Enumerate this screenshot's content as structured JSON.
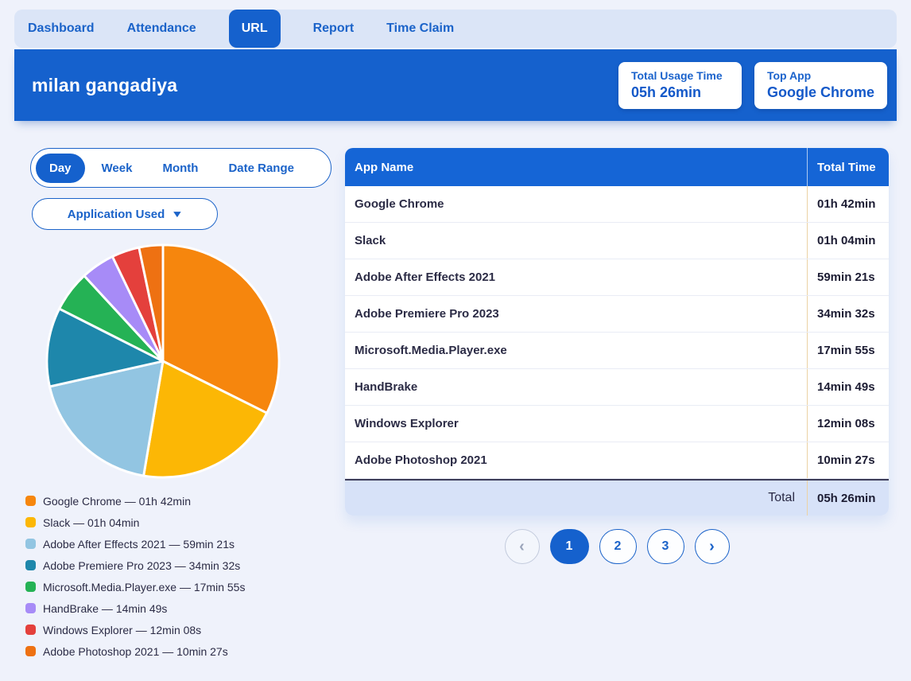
{
  "nav": {
    "tabs": [
      {
        "label": "Dashboard",
        "active": false
      },
      {
        "label": "Attendance",
        "active": false
      },
      {
        "label": "URL",
        "active": true
      },
      {
        "label": "Report",
        "active": false
      },
      {
        "label": "Time Claim",
        "active": false
      }
    ]
  },
  "header": {
    "user_name": "milan gangadiya",
    "stats": [
      {
        "label": "Total Usage Time",
        "value": "05h 26min"
      },
      {
        "label": "Top App",
        "value": "Google Chrome"
      }
    ]
  },
  "filters": {
    "range_options": [
      {
        "label": "Day",
        "active": true
      },
      {
        "label": "Week",
        "active": false
      },
      {
        "label": "Month",
        "active": false
      },
      {
        "label": "Date Range",
        "active": false
      }
    ],
    "application_used_label": "Application Used"
  },
  "icons": {
    "dropdown_caret": "▼",
    "prev_arrow": "‹",
    "next_arrow": "›"
  },
  "chart_data": {
    "type": "pie",
    "start_angle_deg_from_top": 0,
    "direction": "clockwise",
    "legend_position": "bottom-left",
    "separator": "—",
    "slices": [
      {
        "label": "Google Chrome",
        "time": "01h 42min",
        "seconds": 6120,
        "color": "#F6860D"
      },
      {
        "label": "Slack",
        "time": "01h 04min",
        "seconds": 3840,
        "color": "#FCB705"
      },
      {
        "label": "Adobe After Effects 2021",
        "time": "59min 21s",
        "seconds": 3561,
        "color": "#92C5E2"
      },
      {
        "label": "Adobe Premiere Pro 2023",
        "time": "34min 32s",
        "seconds": 2072,
        "color": "#1E87AB"
      },
      {
        "label": "Microsoft.Media.Player.exe",
        "time": "17min 55s",
        "seconds": 1075,
        "color": "#25B255"
      },
      {
        "label": "HandBrake",
        "time": "14min 49s",
        "seconds": 889,
        "color": "#A78BF7"
      },
      {
        "label": "Windows Explorer",
        "time": "12min 08s",
        "seconds": 728,
        "color": "#E4403C"
      },
      {
        "label": "Adobe Photoshop 2021",
        "time": "10min 27s",
        "seconds": 627,
        "color": "#EE7112"
      }
    ]
  },
  "table": {
    "columns": [
      "App Name",
      "Total Time"
    ],
    "rows": [
      {
        "name": "Google Chrome",
        "time": "01h 42min"
      },
      {
        "name": "Slack",
        "time": "01h 04min"
      },
      {
        "name": "Adobe After Effects 2021",
        "time": "59min 21s"
      },
      {
        "name": "Adobe Premiere Pro 2023",
        "time": "34min 32s"
      },
      {
        "name": "Microsoft.Media.Player.exe",
        "time": "17min 55s"
      },
      {
        "name": "HandBrake",
        "time": "14min 49s"
      },
      {
        "name": "Windows Explorer",
        "time": "12min 08s"
      },
      {
        "name": "Adobe Photoshop 2021",
        "time": "10min 27s"
      }
    ],
    "total_label": "Total",
    "total_value": "05h 26min"
  },
  "pagination": {
    "pages": [
      "1",
      "2",
      "3"
    ],
    "active_page": "1"
  }
}
